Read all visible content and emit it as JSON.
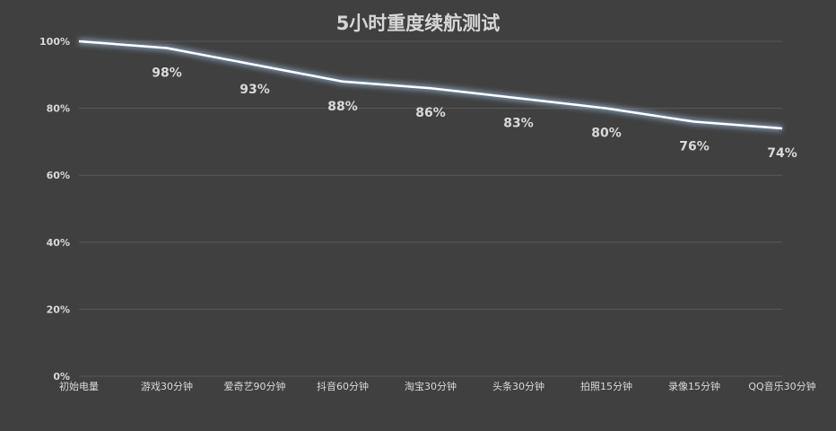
{
  "chart_data": {
    "type": "line",
    "title": "5小时重度续航测试",
    "xlabel": "",
    "ylabel": "",
    "categories": [
      "初始电量",
      "游戏30分钟",
      "爱奇艺90分钟",
      "抖音60分钟",
      "淘宝30分钟",
      "头条30分钟",
      "拍照15分钟",
      "录像15分钟",
      "QQ音乐30分钟"
    ],
    "series": [
      {
        "values": [
          100,
          98,
          93,
          88,
          86,
          83,
          80,
          76,
          74
        ]
      }
    ],
    "data_labels": [
      "",
      "98%",
      "93%",
      "88%",
      "86%",
      "83%",
      "80%",
      "76%",
      "74%"
    ],
    "yticks": [
      "0%",
      "20%",
      "40%",
      "60%",
      "80%",
      "100%"
    ],
    "ylim": [
      0,
      100
    ],
    "grid": true,
    "legend": "none",
    "colors": {
      "background": "#404040",
      "line": "#ffffff",
      "glow": "#9ec3e6",
      "text": "#d9d9d9",
      "grid": "#595959"
    }
  }
}
